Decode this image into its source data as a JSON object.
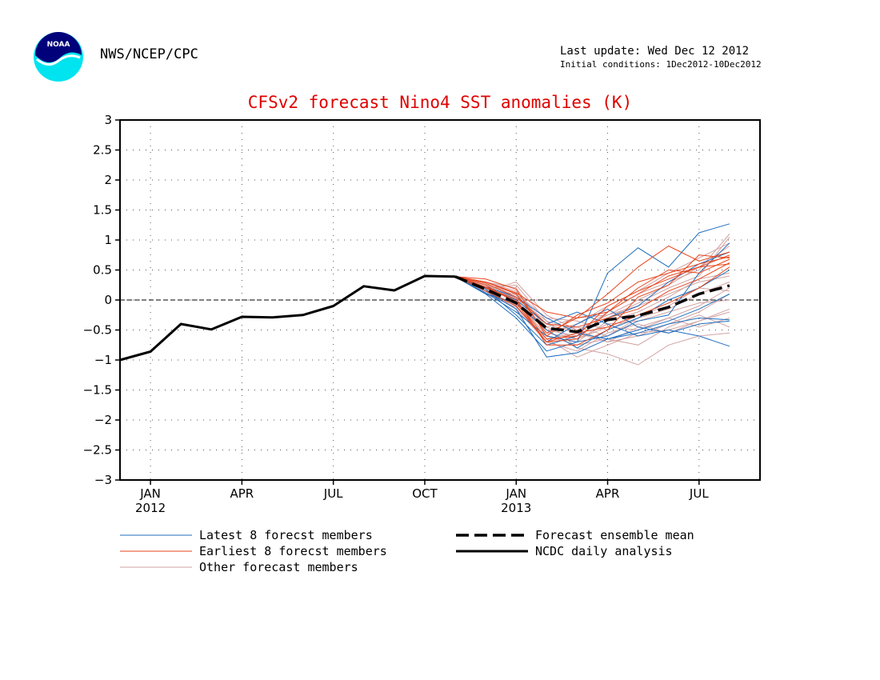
{
  "header": {
    "agency": "NWS/NCEP/CPC",
    "last_update": "Last update: Wed Dec 12 2012",
    "initial_conditions": "Initial conditions: 1Dec2012-10Dec2012",
    "logo_text": "NOAA"
  },
  "chart_data": {
    "type": "line",
    "title": "CFSv2 forecast Nino4 SST anomalies (K)",
    "xlabel": "",
    "ylabel": "",
    "ylim": [
      -3,
      3
    ],
    "xlim": [
      "2011-12",
      "2013-08"
    ],
    "y_ticks": [
      3,
      2.5,
      2,
      1.5,
      1,
      0.5,
      0,
      -0.5,
      -1,
      -1.5,
      -2,
      -2.5,
      -3
    ],
    "y_tick_labels": [
      "3",
      "2.5",
      "2",
      "1.5",
      "1",
      "0.5",
      "0",
      "−0.5",
      "−1",
      "−1.5",
      "−2",
      "−2.5",
      "−3"
    ],
    "x_ticks": [
      {
        "x": 1,
        "label": "JAN",
        "sub": "2012"
      },
      {
        "x": 4,
        "label": "APR",
        "sub": ""
      },
      {
        "x": 7,
        "label": "JUL",
        "sub": ""
      },
      {
        "x": 10,
        "label": "OCT",
        "sub": ""
      },
      {
        "x": 13,
        "label": "JAN",
        "sub": "2013"
      },
      {
        "x": 16,
        "label": "APR",
        "sub": ""
      },
      {
        "x": 19,
        "label": "JUL",
        "sub": ""
      }
    ],
    "grid": true,
    "zero_line": true,
    "colors": {
      "latest": "#1f6fbf",
      "earliest": "#e8461e",
      "other": "#d2a3a3",
      "mean": "#000000",
      "analysis": "#000000",
      "title": "#e00000"
    },
    "analysis": {
      "name": "NCDC daily analysis",
      "x": [
        0,
        1,
        2,
        3,
        4,
        5,
        6,
        7,
        8,
        9,
        10,
        11
      ],
      "y": [
        -1.0,
        -0.86,
        -0.4,
        -0.49,
        -0.28,
        -0.29,
        -0.25,
        -0.1,
        0.23,
        0.16,
        0.4,
        0.39
      ]
    },
    "mean": {
      "name": "Forecast ensemble mean",
      "x": [
        11,
        12,
        13,
        14,
        15,
        16,
        17,
        18,
        19,
        20
      ],
      "y": [
        0.39,
        0.18,
        -0.05,
        -0.47,
        -0.53,
        -0.33,
        -0.26,
        -0.12,
        0.1,
        0.24
      ]
    },
    "forecast_x": [
      11,
      12,
      13,
      14,
      15,
      16,
      17,
      18,
      19,
      20
    ],
    "latest": [
      [
        0.39,
        0.15,
        -0.15,
        -0.95,
        -0.88,
        -0.65,
        -0.55,
        -0.4,
        -0.3,
        -0.33
      ],
      [
        0.39,
        0.1,
        -0.3,
        -0.85,
        -0.7,
        0.45,
        0.87,
        0.55,
        1.12,
        1.27
      ],
      [
        0.39,
        0.12,
        -0.2,
        -0.6,
        -0.7,
        -0.6,
        -0.35,
        -0.25,
        0.45,
        0.95
      ],
      [
        0.39,
        0.2,
        0.0,
        -0.4,
        -0.2,
        -0.4,
        -0.6,
        -0.5,
        -0.6,
        -0.77
      ],
      [
        0.39,
        0.15,
        -0.1,
        -0.7,
        -0.4,
        -0.15,
        -0.45,
        -0.55,
        -0.4,
        -0.35
      ],
      [
        0.39,
        0.22,
        0.05,
        -0.3,
        -0.55,
        -0.65,
        -0.5,
        -0.35,
        -0.15,
        0.1
      ],
      [
        0.39,
        0.18,
        -0.25,
        -0.75,
        -0.6,
        -0.3,
        -0.1,
        0.3,
        0.6,
        0.8
      ],
      [
        0.39,
        0.1,
        -0.05,
        -0.5,
        -0.8,
        -0.5,
        -0.3,
        0.0,
        0.2,
        0.5
      ]
    ],
    "earliest": [
      [
        0.39,
        0.3,
        0.1,
        -0.55,
        -0.3,
        0.1,
        0.55,
        0.9,
        0.65,
        0.8
      ],
      [
        0.39,
        0.25,
        -0.05,
        -0.7,
        -0.65,
        -0.2,
        0.1,
        0.4,
        0.55,
        0.75
      ],
      [
        0.39,
        0.2,
        0.02,
        -0.75,
        -0.75,
        -0.5,
        0.05,
        0.25,
        0.75,
        0.7
      ],
      [
        0.39,
        0.35,
        0.18,
        -0.6,
        -0.25,
        -0.05,
        0.3,
        0.45,
        0.6,
        0.72
      ],
      [
        0.39,
        0.28,
        0.05,
        -0.4,
        -0.45,
        -0.3,
        -0.15,
        0.15,
        0.35,
        0.62
      ],
      [
        0.39,
        0.15,
        -0.1,
        -0.7,
        -0.55,
        -0.45,
        -0.25,
        -0.05,
        0.2,
        0.55
      ],
      [
        0.39,
        0.3,
        0.12,
        -0.2,
        -0.3,
        -0.2,
        0.2,
        0.5,
        0.45,
        0.68
      ],
      [
        0.39,
        0.22,
        -0.02,
        -0.65,
        -0.6,
        -0.1,
        0.15,
        0.35,
        0.55,
        0.6
      ]
    ],
    "other": [
      [
        0.39,
        0.2,
        0.25,
        -0.35,
        -0.8,
        -0.9,
        -1.08,
        -0.75,
        -0.6,
        -0.55
      ],
      [
        0.39,
        0.15,
        0.3,
        -0.25,
        -0.5,
        -0.7,
        -0.6,
        -0.4,
        -0.2,
        0.1
      ],
      [
        0.39,
        0.25,
        0.05,
        -0.55,
        -0.65,
        -0.45,
        -0.5,
        -0.3,
        -0.1,
        0.2
      ],
      [
        0.39,
        0.1,
        -0.12,
        -0.65,
        -0.95,
        -0.75,
        -0.55,
        -0.5,
        -0.35,
        -0.2
      ],
      [
        0.39,
        0.3,
        0.15,
        -0.45,
        -0.3,
        -0.25,
        0.0,
        0.25,
        0.55,
        0.9
      ],
      [
        0.39,
        0.18,
        0.0,
        -0.6,
        -0.7,
        -0.35,
        -0.2,
        0.05,
        0.35,
        0.45
      ],
      [
        0.39,
        0.12,
        -0.08,
        -0.5,
        -0.45,
        -0.6,
        -0.3,
        -0.15,
        0.1,
        0.3
      ],
      [
        0.39,
        0.26,
        0.08,
        -0.4,
        -0.55,
        -0.2,
        0.1,
        0.3,
        0.5,
        1.1
      ],
      [
        0.39,
        0.2,
        -0.15,
        -0.7,
        -0.85,
        -0.55,
        -0.4,
        -0.55,
        -0.35,
        -0.15
      ],
      [
        0.39,
        0.15,
        0.1,
        -0.3,
        -0.35,
        -0.5,
        -0.25,
        -0.1,
        0.2,
        0.15
      ],
      [
        0.39,
        0.22,
        -0.02,
        -0.6,
        -0.75,
        -0.65,
        -0.75,
        -0.45,
        -0.25,
        -0.45
      ],
      [
        0.39,
        0.3,
        0.2,
        -0.5,
        -0.6,
        -0.3,
        -0.05,
        0.2,
        0.4,
        1.05
      ],
      [
        0.39,
        0.1,
        -0.05,
        -0.45,
        -0.65,
        -0.4,
        -0.35,
        -0.2,
        -0.05,
        0.0
      ],
      [
        0.39,
        0.25,
        0.12,
        -0.55,
        -0.4,
        -0.1,
        0.15,
        0.45,
        0.7,
        0.95
      ],
      [
        0.39,
        0.18,
        -0.1,
        -0.65,
        -0.55,
        -0.7,
        -0.45,
        -0.3,
        -0.45,
        -0.3
      ],
      [
        0.39,
        0.2,
        0.04,
        -0.35,
        -0.5,
        -0.25,
        -0.1,
        0.1,
        0.3,
        0.4
      ]
    ],
    "legend": {
      "placement": "bottom",
      "entries": [
        {
          "key": "latest",
          "label": "Latest 8 forecst members"
        },
        {
          "key": "earliest",
          "label": "Earliest 8 forecst members"
        },
        {
          "key": "other",
          "label": "Other forecast members"
        },
        {
          "key": "mean",
          "label": "Forecast ensemble mean"
        },
        {
          "key": "analysis",
          "label": "NCDC daily analysis"
        }
      ]
    }
  }
}
